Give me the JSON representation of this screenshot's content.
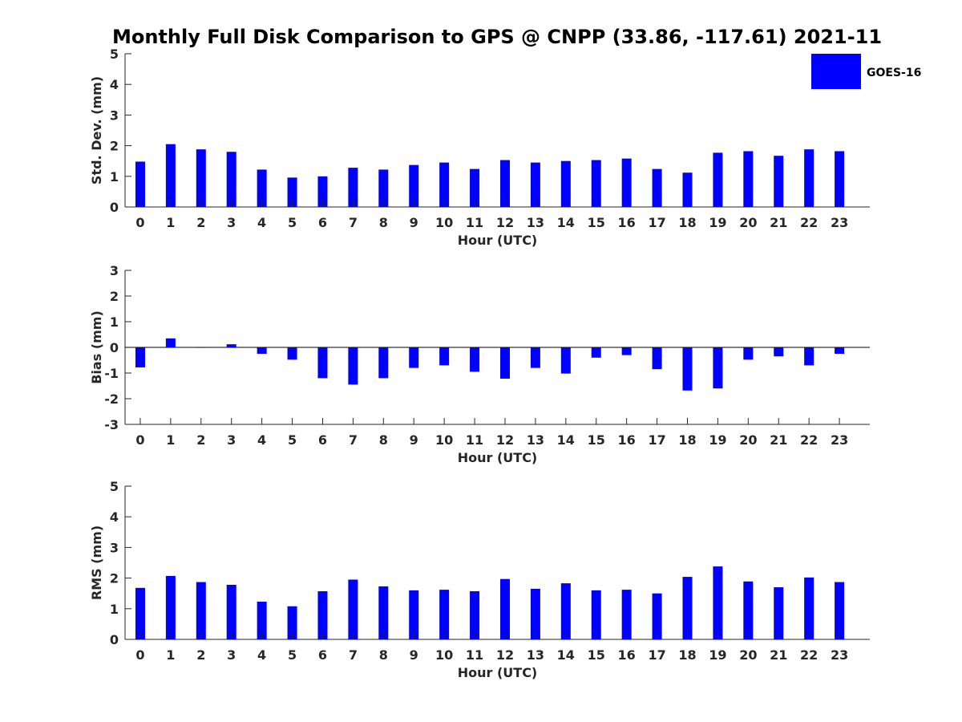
{
  "title": "Monthly Full Disk Comparison to GPS @ CNPP (33.86, -117.61) 2021-11",
  "legend": {
    "label": "GOES-16",
    "color": "#0000ff"
  },
  "chart_data": [
    {
      "type": "bar",
      "xlabel": "Hour (UTC)",
      "ylabel": "Std. Dev. (mm)",
      "ylim": [
        0,
        5
      ],
      "yticks": [
        "0",
        "1",
        "2",
        "3",
        "4",
        "5"
      ],
      "categories": [
        "0",
        "1",
        "2",
        "3",
        "4",
        "5",
        "6",
        "7",
        "8",
        "9",
        "10",
        "11",
        "12",
        "13",
        "14",
        "15",
        "16",
        "17",
        "18",
        "19",
        "20",
        "21",
        "22",
        "23"
      ],
      "values": [
        1.48,
        2.05,
        1.88,
        1.8,
        1.22,
        0.96,
        1.0,
        1.28,
        1.22,
        1.37,
        1.45,
        1.24,
        1.53,
        1.45,
        1.5,
        1.53,
        1.58,
        1.24,
        1.12,
        1.77,
        1.82,
        1.67,
        1.88,
        1.82
      ],
      "legend": "top-right"
    },
    {
      "type": "bar",
      "xlabel": "Hour (UTC)",
      "ylabel": "Bias (mm)",
      "ylim": [
        -3,
        3
      ],
      "yticks": [
        "-3",
        "-2",
        "-1",
        "0",
        "1",
        "2",
        "3"
      ],
      "categories": [
        "0",
        "1",
        "2",
        "3",
        "4",
        "5",
        "6",
        "7",
        "8",
        "9",
        "10",
        "11",
        "12",
        "13",
        "14",
        "15",
        "16",
        "17",
        "18",
        "19",
        "20",
        "21",
        "22",
        "23"
      ],
      "values": [
        -0.78,
        0.35,
        -0.02,
        0.12,
        -0.25,
        -0.48,
        -1.2,
        -1.45,
        -1.2,
        -0.8,
        -0.7,
        -0.95,
        -1.22,
        -0.8,
        -1.02,
        -0.4,
        -0.3,
        -0.85,
        -1.68,
        -1.6,
        -0.48,
        -0.35,
        -0.7,
        -0.25
      ]
    },
    {
      "type": "bar",
      "xlabel": "Hour (UTC)",
      "ylabel": "RMS (mm)",
      "ylim": [
        0,
        5
      ],
      "yticks": [
        "0",
        "1",
        "2",
        "3",
        "4",
        "5"
      ],
      "categories": [
        "0",
        "1",
        "2",
        "3",
        "4",
        "5",
        "6",
        "7",
        "8",
        "9",
        "10",
        "11",
        "12",
        "13",
        "14",
        "15",
        "16",
        "17",
        "18",
        "19",
        "20",
        "21",
        "22",
        "23"
      ],
      "values": [
        1.68,
        2.07,
        1.87,
        1.78,
        1.23,
        1.08,
        1.57,
        1.95,
        1.73,
        1.6,
        1.62,
        1.57,
        1.97,
        1.65,
        1.83,
        1.6,
        1.62,
        1.5,
        2.04,
        2.38,
        1.89,
        1.7,
        2.02,
        1.87
      ]
    }
  ]
}
